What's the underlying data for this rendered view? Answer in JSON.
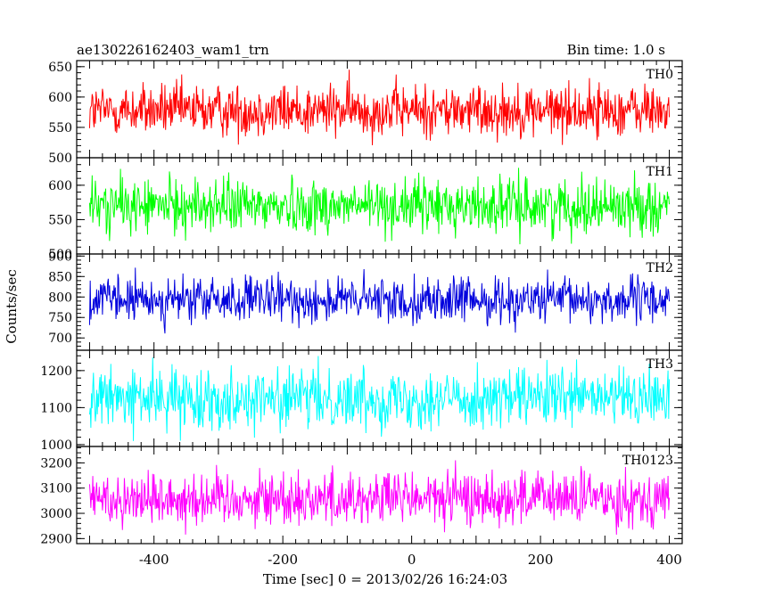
{
  "header": {
    "title": "ae130226162403_wam1_trn",
    "bin_time": "Bin time: 1.0 s"
  },
  "chart_data": {
    "type": "line",
    "xlabel": "Time [sec] 0 = 2013/02/26 16:24:03",
    "ylabel": "Counts/sec",
    "xlim": [
      -520,
      420
    ],
    "xticks": [
      -400,
      -200,
      0,
      200,
      400
    ],
    "x_range": [
      -500,
      400
    ],
    "bin_time_s": 1.0,
    "panels": [
      {
        "name": "TH0",
        "color": "#ff0000",
        "ylim": [
          500,
          660
        ],
        "yticks": [
          500,
          550,
          600,
          650
        ],
        "mean": 578,
        "noise": 22
      },
      {
        "name": "TH1",
        "color": "#00ff00",
        "ylim": [
          500,
          640
        ],
        "yticks": [
          500,
          550,
          600
        ],
        "mean": 570,
        "noise": 20
      },
      {
        "name": "TH2",
        "color": "#0000dd",
        "ylim": [
          670,
          905
        ],
        "yticks": [
          700,
          750,
          800,
          850,
          900
        ],
        "mean": 792,
        "noise": 28
      },
      {
        "name": "TH3",
        "color": "#00ffff",
        "ylim": [
          995,
          1255
        ],
        "yticks": [
          1000,
          1100,
          1200
        ],
        "mean": 1125,
        "noise": 40
      },
      {
        "name": "TH0123",
        "color": "#ff00ff",
        "ylim": [
          2880,
          3265
        ],
        "yticks": [
          2900,
          3000,
          3100,
          3200
        ],
        "mean": 3060,
        "noise": 55
      }
    ]
  }
}
